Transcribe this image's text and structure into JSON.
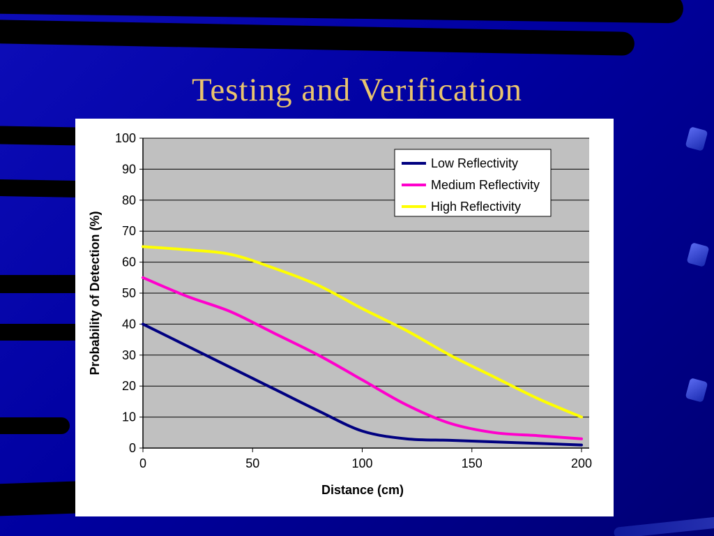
{
  "slide": {
    "title": "Testing and Verification"
  },
  "colors": {
    "slide_bg": "#0000A0",
    "title_text": "#E9C46E",
    "chart_bg": "#FFFFFF",
    "plot_bg": "#C0C0C0",
    "grid": "#000000",
    "legend_border": "#000000"
  },
  "chart_data": {
    "type": "line",
    "title": "",
    "xlabel": "Distance (cm)",
    "ylabel": "Probability of Detection (%)",
    "xlim": [
      0,
      200
    ],
    "ylim": [
      0,
      100
    ],
    "x_ticks": [
      0,
      50,
      100,
      150,
      200
    ],
    "y_ticks": [
      0,
      10,
      20,
      30,
      40,
      50,
      60,
      70,
      80,
      90,
      100
    ],
    "grid": "horizontal",
    "legend_position": "top-right",
    "x": [
      0,
      20,
      40,
      60,
      80,
      100,
      120,
      140,
      160,
      180,
      200
    ],
    "series": [
      {
        "name": "Low Reflectivity",
        "color": "#000080",
        "values": [
          40,
          33,
          26,
          19,
          12,
          5.5,
          3,
          2.5,
          2,
          1.5,
          1
        ]
      },
      {
        "name": "Medium Reflectivity",
        "color": "#FF00CC",
        "values": [
          55,
          49,
          44,
          37,
          30,
          22,
          14,
          8,
          5,
          4,
          3
        ]
      },
      {
        "name": "High Reflectivity",
        "color": "#FFFF00",
        "values": [
          65,
          64,
          62.5,
          58,
          52.5,
          45,
          38,
          30,
          23,
          16,
          10
        ]
      }
    ]
  }
}
